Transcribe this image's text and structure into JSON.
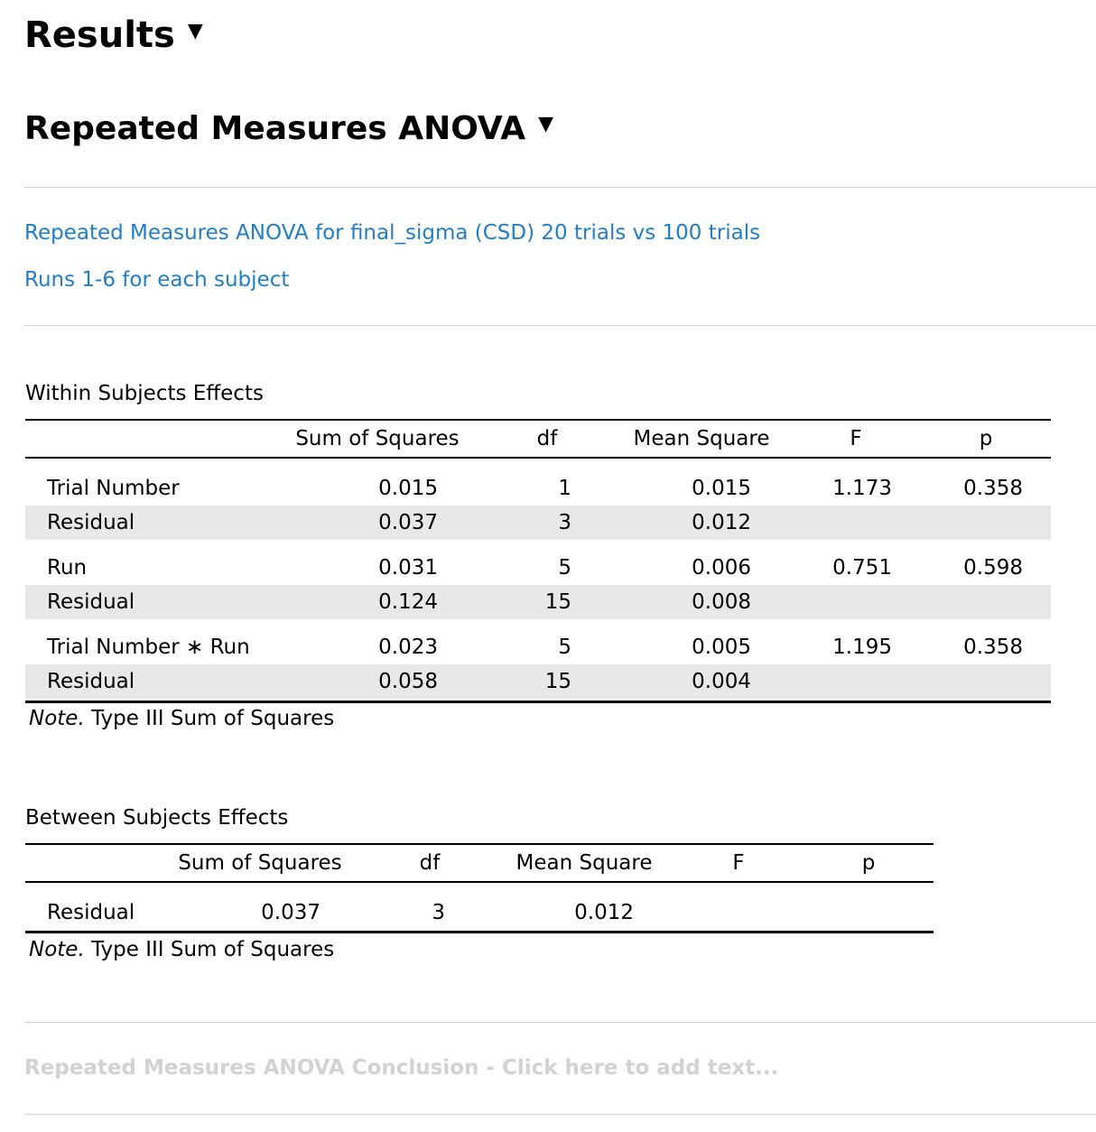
{
  "results_heading": "Results",
  "anova_heading": "Repeated Measures ANOVA",
  "description": {
    "line1": "Repeated Measures ANOVA for final_sigma (CSD) 20 trials vs 100 trials",
    "line2": "Runs 1-6  for each subject"
  },
  "within": {
    "title": "Within Subjects Effects",
    "headers": [
      "Sum of Squares",
      "df",
      "Mean Square",
      "F",
      "p"
    ],
    "rows": [
      {
        "name": "Trial Number",
        "ss": "0.015",
        "df": "1",
        "ms": "0.015",
        "f": "1.173",
        "p": "0.358"
      },
      {
        "name": "Residual",
        "ss": "0.037",
        "df": "3",
        "ms": "0.012",
        "f": "",
        "p": ""
      },
      {
        "name": "Run",
        "ss": "0.031",
        "df": "5",
        "ms": "0.006",
        "f": "0.751",
        "p": "0.598"
      },
      {
        "name": "Residual",
        "ss": "0.124",
        "df": "15",
        "ms": "0.008",
        "f": "",
        "p": ""
      },
      {
        "name": "Trial Number ∗ Run",
        "ss": "0.023",
        "df": "5",
        "ms": "0.005",
        "f": "1.195",
        "p": "0.358"
      },
      {
        "name": "Residual",
        "ss": "0.058",
        "df": "15",
        "ms": "0.004",
        "f": "",
        "p": ""
      }
    ],
    "note_label": "Note.",
    "note_text": " Type III Sum of Squares"
  },
  "between": {
    "title": "Between Subjects Effects",
    "headers": [
      "Sum of Squares",
      "df",
      "Mean Square",
      "F",
      "p"
    ],
    "rows": [
      {
        "name": "Residual",
        "ss": "0.037",
        "df": "3",
        "ms": "0.012",
        "f": "",
        "p": ""
      }
    ],
    "note_label": "Note.",
    "note_text": " Type III Sum of Squares"
  },
  "conclusion_placeholder": "Repeated Measures ANOVA Conclusion - Click here to add text...",
  "icons": {
    "collapse": "caret-down-icon"
  }
}
